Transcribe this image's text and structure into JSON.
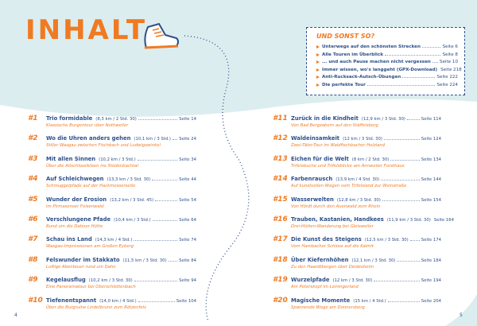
{
  "title": "INHALT",
  "extras": {
    "heading": "UND SONST SO?",
    "items": [
      {
        "text": "Unterwegs auf den schönsten Strecken",
        "page": "Seite 6"
      },
      {
        "text": "Alle Touren im Überblick",
        "page": "Seite 8"
      },
      {
        "text": "... und auch Pause machen nicht vergessen",
        "page": "Seite 10"
      },
      {
        "text": "Immer wissen, wo's langgeht (GPX-Download)",
        "page": "Seite 218"
      },
      {
        "text": "Anti-Rucksack-Autsch-Übungen",
        "page": "Seite 222"
      },
      {
        "text": "Die perfekte Tour",
        "page": "Seite 224"
      }
    ]
  },
  "left": [
    {
      "num": "#1",
      "title": "Trio formidable",
      "details": "(8,3 km / 2 Std. 30)",
      "page": "Seite 14",
      "subtitle": "Klassische Burgentour über Nothweiler"
    },
    {
      "num": "#2",
      "title": "Wo die Uhren anders gehen",
      "details": "(10,1 km / 3 Std.)",
      "page": "Seite 24",
      "subtitle": "Stiller Wasgau zwischen Fischbach und Ludwigswinkel"
    },
    {
      "num": "#3",
      "title": "Mit allen Sinnen",
      "details": "(10,2 km / 3 Std.)",
      "page": "Seite 34",
      "subtitle": "Über die Altschlossfelsen ins Stüdenbachtal"
    },
    {
      "num": "#4",
      "title": "Auf Schleichwegen",
      "details": "(13,3 km / 3 Std. 30)",
      "page": "Seite 44",
      "subtitle": "Schmuggelpfade auf der Hackmesserseite"
    },
    {
      "num": "#5",
      "title": "Wunder der Erosion",
      "details": "(13,2 km / 3 Std. 45)",
      "page": "Seite 54",
      "subtitle": "Im Pirmasenser Felsenwald"
    },
    {
      "num": "#6",
      "title": "Verschlungene Pfade",
      "details": "(10,4 km / 3 Std.)",
      "page": "Seite 64",
      "subtitle": "Rund um die Dahner Hütte"
    },
    {
      "num": "#7",
      "title": "Schau ins Land",
      "details": "(14,3 km / 4 Std.)",
      "page": "Seite 74",
      "subtitle": "Wasgau-Impressionen am Großen Eyberg"
    },
    {
      "num": "#8",
      "title": "Felswunder im Stakkato",
      "details": "(11,5 km / 3 Std. 30)",
      "page": "Seite 84",
      "subtitle": "Luftige Abenteuer rund um Dahn"
    },
    {
      "num": "#9",
      "title": "Kegelausflug",
      "details": "(10,2 km / 3 Std. 30)",
      "page": "Seite 94",
      "subtitle": "Eine Panoramatour bei Oberschlettenbach"
    },
    {
      "num": "#10",
      "title": "Tiefenentspannt",
      "details": "(14,0 km / 4 Std.)",
      "page": "Seite 104",
      "subtitle": "Über die Burgruine Lindelbrunn zum Rötzenfels"
    }
  ],
  "right": [
    {
      "num": "#11",
      "title": "Zurück in die Kindheit",
      "details": "(12,9 km / 3 Std. 30)",
      "page": "Seite 114",
      "subtitle": "Von Bad Bergzabern auf den Stäffelsberg"
    },
    {
      "num": "#12",
      "title": "Waldeinsamkeit",
      "details": "(12 km / 3 Std. 30)",
      "page": "Seite 124",
      "subtitle": "Zwei-Täler-Tour im Waldfischbacher Holzland"
    },
    {
      "num": "#13",
      "title": "Eichen für die Welt",
      "details": "(8 km / 2 Std. 30)",
      "page": "Seite 134",
      "subtitle": "Trifelsbuche und Trifelsblicke am Annweiler Forsthaus"
    },
    {
      "num": "#14",
      "title": "Farbenrausch",
      "details": "(13,9 km / 4 Std. 30)",
      "page": "Seite 144",
      "subtitle": "Auf kunstvollen Wegen vom Trifelsland zur Weinstraße"
    },
    {
      "num": "#15",
      "title": "Wasserwelten",
      "details": "(12,8 km / 3 Std. 30)",
      "page": "Seite 154",
      "subtitle": "Von Hördt durch den Auenwald zum Rhein"
    },
    {
      "num": "#16",
      "title": "Trauben, Kastanien, Handkees",
      "details": "(11,9 km / 3 Std. 30)",
      "page": "Seite 164",
      "subtitle": "Drei-Hütten-Wanderung bei Gleisweiler"
    },
    {
      "num": "#17",
      "title": "Die Kunst des Steigens",
      "details": "(12,5 km / 3 Std. 30)",
      "page": "Seite 174",
      "subtitle": "Vom Hambacher Schloss auf die Kalmit"
    },
    {
      "num": "#18",
      "title": "Über Kiefernhöhen",
      "details": "(12,1 km / 3 Std. 30)",
      "page": "Seite 184",
      "subtitle": "Zu den Haardtbergen über Deidesheim"
    },
    {
      "num": "#19",
      "title": "Wurzelpfade",
      "details": "(12 km / 3 Std. 30)",
      "page": "Seite 194",
      "subtitle": "Am Peterskopf im Leiningerland"
    },
    {
      "num": "#20",
      "title": "Magische Momente",
      "details": "(15 km / 4 Std.)",
      "page": "Seite 204",
      "subtitle": "Spannende Wege am Donnersberg"
    }
  ],
  "page_numbers": [
    "4",
    "5"
  ]
}
